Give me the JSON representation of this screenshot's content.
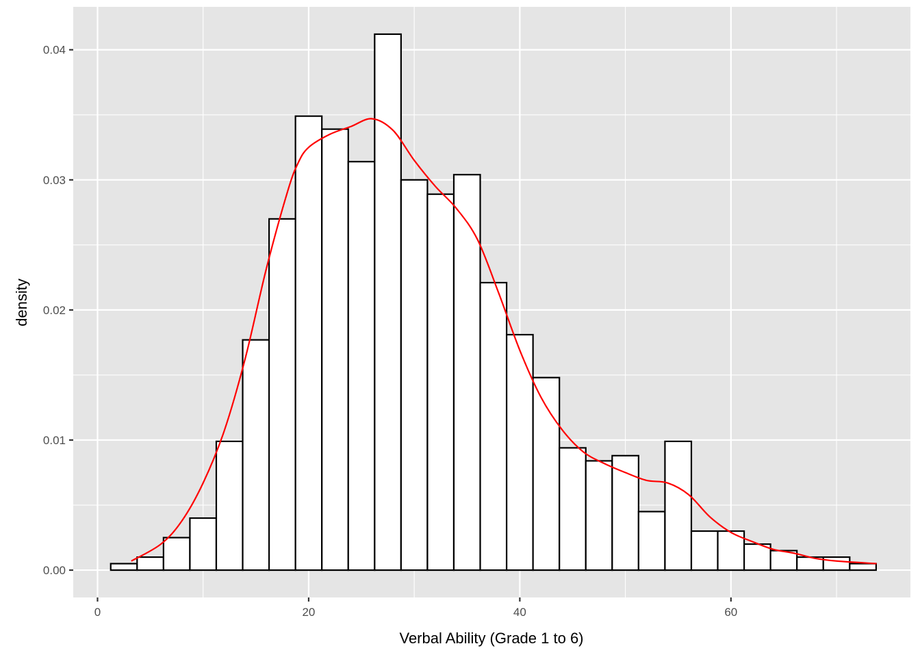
{
  "chart_data": {
    "type": "bar",
    "title": "",
    "xlabel": "Verbal Ability (Grade 1 to 6)",
    "ylabel": "density",
    "xlim": [
      -2.3,
      77.0
    ],
    "ylim": [
      -0.0021,
      0.0433
    ],
    "x_ticks": [
      0,
      20,
      40,
      60
    ],
    "x_tick_labels": [
      "0",
      "20",
      "40",
      "60"
    ],
    "y_ticks": [
      0.0,
      0.01,
      0.02,
      0.03,
      0.04
    ],
    "y_tick_labels": [
      "0.00",
      "0.01",
      "0.02",
      "0.03",
      "0.04"
    ],
    "grid": true,
    "bin_start": 1.25,
    "bin_width": 2.5,
    "values": [
      0.0005,
      0.001,
      0.0025,
      0.004,
      0.0099,
      0.0177,
      0.027,
      0.0349,
      0.0339,
      0.0314,
      0.0412,
      0.03,
      0.0289,
      0.0304,
      0.0221,
      0.0181,
      0.0148,
      0.0094,
      0.0084,
      0.0088,
      0.0045,
      0.0099,
      0.003,
      0.003,
      0.002,
      0.0015,
      0.001,
      0.001,
      0.0005
    ],
    "density_curve": {
      "color": "#ff0000",
      "x": [
        3.2,
        6,
        8,
        10,
        12,
        14,
        16,
        18,
        19,
        20,
        22,
        24,
        26,
        28,
        30,
        32,
        34,
        36,
        38,
        40,
        42,
        44,
        46,
        48,
        50,
        52,
        54,
        56,
        58,
        60,
        62,
        64,
        66,
        68,
        70,
        73.8
      ],
      "y": [
        0.0007,
        0.002,
        0.0038,
        0.0067,
        0.0107,
        0.0163,
        0.0232,
        0.0291,
        0.0313,
        0.0325,
        0.0335,
        0.0341,
        0.0347,
        0.0338,
        0.0315,
        0.0295,
        0.0278,
        0.0254,
        0.0213,
        0.0169,
        0.0133,
        0.0108,
        0.0091,
        0.0082,
        0.0075,
        0.0069,
        0.0067,
        0.0058,
        0.0041,
        0.0029,
        0.0022,
        0.0016,
        0.0013,
        0.0009,
        0.0007,
        0.0005
      ]
    },
    "colors": {
      "panel_bg": "#e5e5e5",
      "grid": "#ffffff",
      "bar_fill": "#ffffff",
      "bar_stroke": "#000000",
      "tick_text": "#4d4d4d",
      "title_text": "#000000"
    }
  }
}
